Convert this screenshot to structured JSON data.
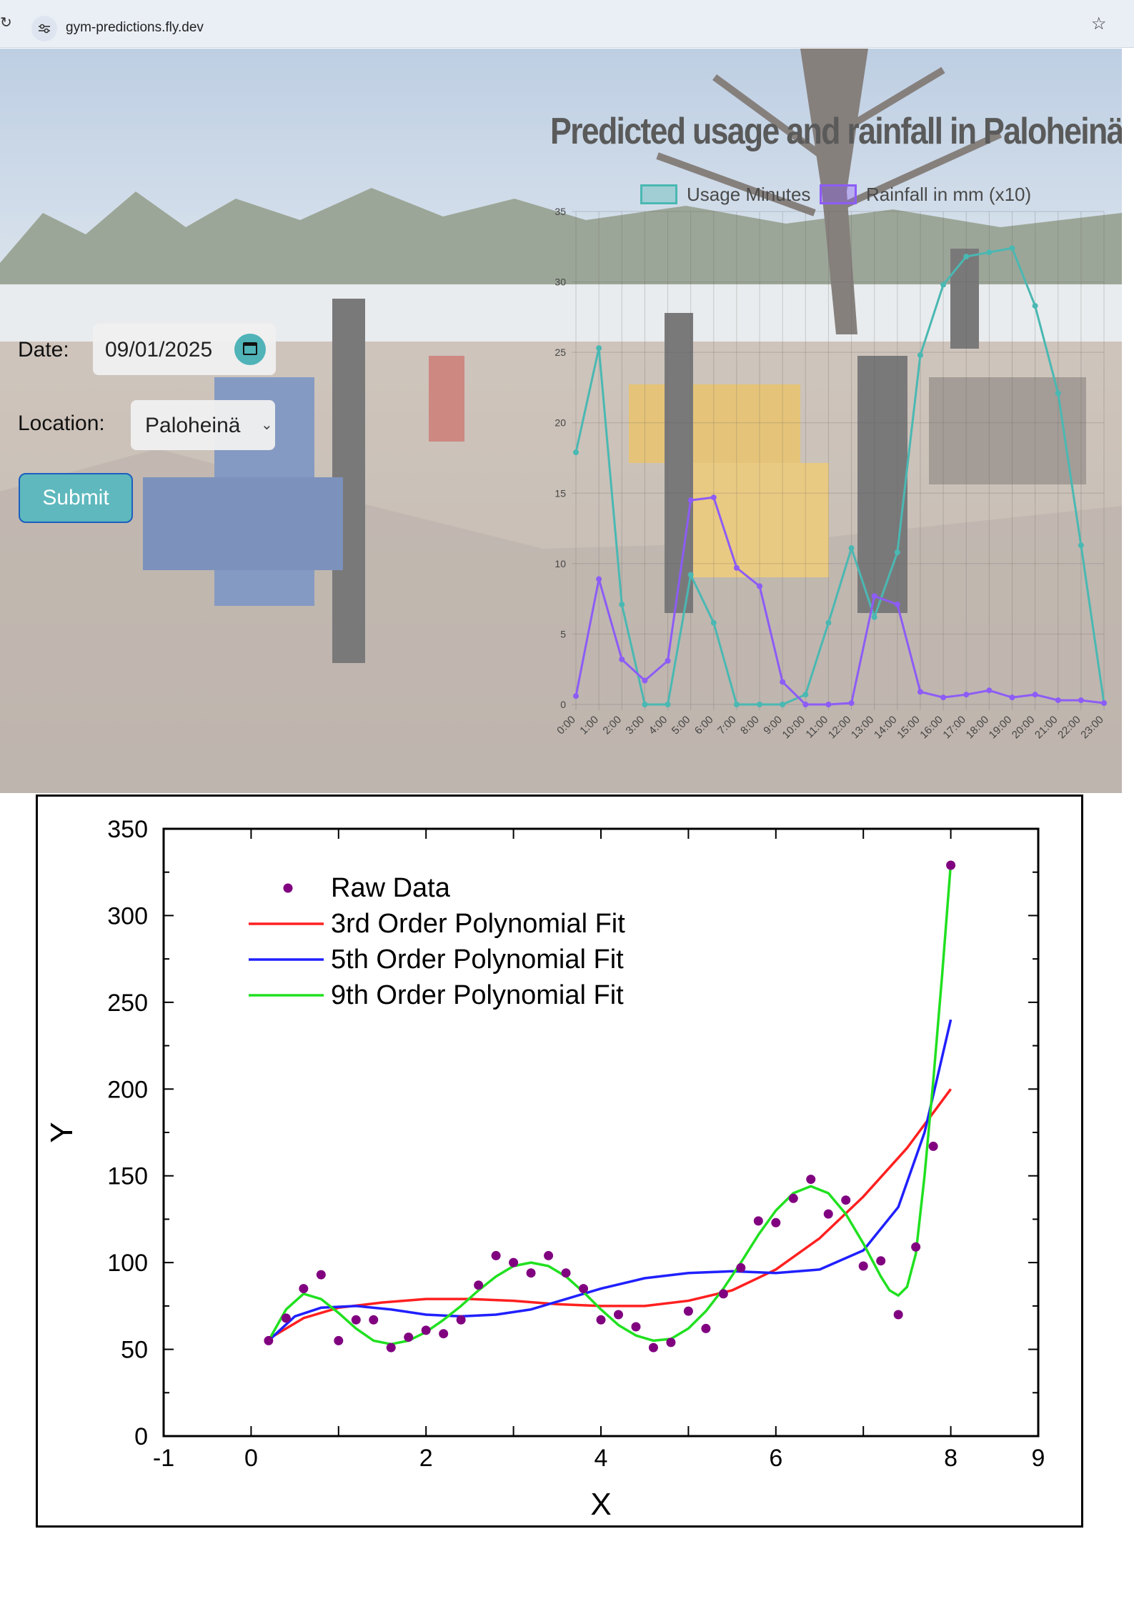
{
  "browser": {
    "url": "gym-predictions.fly.dev"
  },
  "form": {
    "date_label": "Date:",
    "date_value": "09/01/2025",
    "location_label": "Location:",
    "location_value": "Paloheinä",
    "submit_label": "Submit"
  },
  "chart_data": [
    {
      "type": "line",
      "title": "Predicted usage and rainfall in Paloheinä",
      "categories": [
        "0:00",
        "1:00",
        "2:00",
        "3:00",
        "4:00",
        "5:00",
        "6:00",
        "7:00",
        "8:00",
        "9:00",
        "10:00",
        "11:00",
        "12:00",
        "13:00",
        "14:00",
        "15:00",
        "16:00",
        "17:00",
        "18:00",
        "19:00",
        "20:00",
        "21:00",
        "22:00",
        "23:00"
      ],
      "yticks": [
        0,
        5,
        10,
        15,
        20,
        25,
        30,
        35
      ],
      "ylim": [
        0,
        35
      ],
      "grid": true,
      "legend_position": "top",
      "series": [
        {
          "name": "Usage Minutes",
          "color": "#4ab8b2",
          "values": [
            17.9,
            25.3,
            7.1,
            0,
            0,
            9.2,
            5.8,
            0,
            0,
            0,
            0.7,
            5.8,
            11.1,
            6.2,
            10.8,
            24.8,
            29.8,
            31.8,
            32.1,
            32.4,
            28.3,
            22.1,
            11.3,
            0.1
          ]
        },
        {
          "name": "Rainfall in mm (x10)",
          "color": "#8d5cf6",
          "values": [
            0.6,
            8.9,
            3.2,
            1.7,
            3.1,
            14.5,
            14.7,
            9.7,
            8.4,
            1.6,
            0,
            0,
            0.1,
            7.7,
            7.1,
            0.9,
            0.5,
            0.7,
            1.0,
            0.5,
            0.7,
            0.3,
            0.3,
            0.1
          ]
        }
      ]
    },
    {
      "type": "scatter",
      "xlabel": "X",
      "ylabel": "Y",
      "xlim": [
        -1,
        9
      ],
      "ylim": [
        0,
        350
      ],
      "xticks": [
        -1,
        0,
        2,
        4,
        6,
        8,
        9
      ],
      "yticks": [
        0,
        50,
        100,
        150,
        200,
        250,
        300,
        350
      ],
      "legend_position": "top-left",
      "series": [
        {
          "name": "Raw Data",
          "color": "#800080",
          "points": [
            [
              0.2,
              55
            ],
            [
              0.4,
              68
            ],
            [
              0.6,
              85
            ],
            [
              0.8,
              93
            ],
            [
              1.0,
              55
            ],
            [
              1.2,
              67
            ],
            [
              1.4,
              67
            ],
            [
              1.6,
              51
            ],
            [
              1.8,
              57
            ],
            [
              2.0,
              61
            ],
            [
              2.2,
              59
            ],
            [
              2.4,
              67
            ],
            [
              2.6,
              87
            ],
            [
              2.8,
              104
            ],
            [
              3.0,
              100
            ],
            [
              3.2,
              94
            ],
            [
              3.4,
              104
            ],
            [
              3.6,
              94
            ],
            [
              3.8,
              85
            ],
            [
              4.0,
              67
            ],
            [
              4.2,
              70
            ],
            [
              4.4,
              63
            ],
            [
              4.6,
              51
            ],
            [
              4.8,
              54
            ],
            [
              5.0,
              72
            ],
            [
              5.2,
              62
            ],
            [
              5.4,
              82
            ],
            [
              5.6,
              97
            ],
            [
              5.8,
              124
            ],
            [
              6.0,
              123
            ],
            [
              6.2,
              137
            ],
            [
              6.4,
              148
            ],
            [
              6.6,
              128
            ],
            [
              6.8,
              136
            ],
            [
              7.0,
              98
            ],
            [
              7.2,
              101
            ],
            [
              7.4,
              70
            ],
            [
              7.6,
              109
            ],
            [
              7.8,
              167
            ],
            [
              8.0,
              329
            ]
          ]
        },
        {
          "name": "3rd Order Polynomial Fit",
          "color": "#ff2020",
          "points": [
            [
              0.2,
              56
            ],
            [
              0.6,
              68
            ],
            [
              1.0,
              74
            ],
            [
              1.5,
              77
            ],
            [
              2.0,
              79
            ],
            [
              2.5,
              79
            ],
            [
              3.0,
              78
            ],
            [
              3.5,
              76
            ],
            [
              4.0,
              75
            ],
            [
              4.5,
              75
            ],
            [
              5.0,
              78
            ],
            [
              5.5,
              84
            ],
            [
              6.0,
              96
            ],
            [
              6.5,
              114
            ],
            [
              7.0,
              138
            ],
            [
              7.5,
              166
            ],
            [
              8.0,
              200
            ]
          ]
        },
        {
          "name": "5th Order Polynomial Fit",
          "color": "#2020ff",
          "points": [
            [
              0.2,
              55
            ],
            [
              0.5,
              69
            ],
            [
              0.8,
              74
            ],
            [
              1.2,
              75
            ],
            [
              1.6,
              73
            ],
            [
              2.0,
              70
            ],
            [
              2.4,
              69
            ],
            [
              2.8,
              70
            ],
            [
              3.2,
              73
            ],
            [
              3.6,
              79
            ],
            [
              4.0,
              85
            ],
            [
              4.5,
              91
            ],
            [
              5.0,
              94
            ],
            [
              5.5,
              95
            ],
            [
              6.0,
              94
            ],
            [
              6.5,
              96
            ],
            [
              7.0,
              107
            ],
            [
              7.4,
              132
            ],
            [
              7.7,
              175
            ],
            [
              8.0,
              240
            ]
          ]
        },
        {
          "name": "9th Order Polynomial Fit",
          "color": "#20e020",
          "points": [
            [
              0.2,
              55
            ],
            [
              0.4,
              73
            ],
            [
              0.6,
              82
            ],
            [
              0.8,
              79
            ],
            [
              1.0,
              71
            ],
            [
              1.2,
              62
            ],
            [
              1.4,
              55
            ],
            [
              1.6,
              53
            ],
            [
              1.8,
              55
            ],
            [
              2.0,
              60
            ],
            [
              2.2,
              67
            ],
            [
              2.4,
              75
            ],
            [
              2.6,
              84
            ],
            [
              2.8,
              92
            ],
            [
              3.0,
              98
            ],
            [
              3.2,
              100
            ],
            [
              3.4,
              98
            ],
            [
              3.6,
              92
            ],
            [
              3.8,
              83
            ],
            [
              4.0,
              73
            ],
            [
              4.2,
              64
            ],
            [
              4.4,
              58
            ],
            [
              4.6,
              55
            ],
            [
              4.8,
              56
            ],
            [
              5.0,
              62
            ],
            [
              5.2,
              72
            ],
            [
              5.4,
              85
            ],
            [
              5.6,
              100
            ],
            [
              5.8,
              116
            ],
            [
              6.0,
              130
            ],
            [
              6.2,
              140
            ],
            [
              6.4,
              144
            ],
            [
              6.6,
              140
            ],
            [
              6.8,
              128
            ],
            [
              7.0,
              111
            ],
            [
              7.2,
              92
            ],
            [
              7.3,
              84
            ],
            [
              7.4,
              81
            ],
            [
              7.5,
              86
            ],
            [
              7.6,
              105
            ],
            [
              7.7,
              150
            ],
            [
              7.8,
              205
            ],
            [
              7.9,
              265
            ],
            [
              8.0,
              330
            ]
          ]
        }
      ]
    }
  ]
}
